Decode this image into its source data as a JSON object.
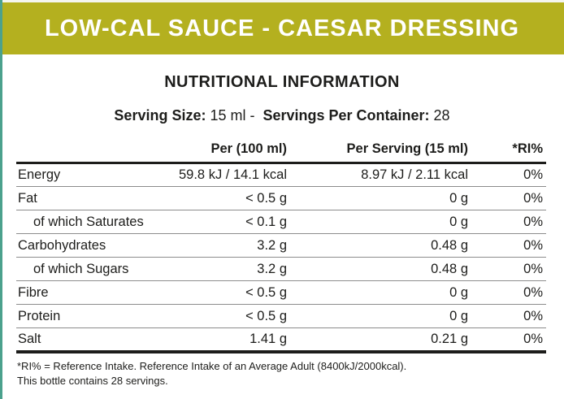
{
  "colors": {
    "banner_bg": "#b4b01f",
    "accent_stripe": "#4ba18d",
    "text": "#1d1d1b",
    "row_divider": "#8c8c8c"
  },
  "banner": {
    "title": "LOW-CAL SAUCE - CAESAR DRESSING"
  },
  "heading": {
    "title": "NUTRITIONAL INFORMATION"
  },
  "serving": {
    "size_label": "Serving Size:",
    "size_value": "15 ml",
    "dash": "-",
    "container_label": "Servings Per Container:",
    "container_value": "28"
  },
  "table": {
    "columns": [
      "",
      "Per (100 ml)",
      "Per Serving (15 ml)",
      "*RI%"
    ],
    "rows": [
      {
        "label": "Energy",
        "per100": "59.8 kJ / 14.1 kcal",
        "perServing": "8.97 kJ / 2.11 kcal",
        "ri": "0%"
      },
      {
        "label": "Fat",
        "per100": "< 0.5 g",
        "perServing": "0 g",
        "ri": "0%"
      },
      {
        "label": "of which Saturates",
        "per100": "< 0.1 g",
        "perServing": "0 g",
        "ri": "0%"
      },
      {
        "label": "Carbohydrates",
        "per100": "3.2 g",
        "perServing": "0.48 g",
        "ri": "0%"
      },
      {
        "label": "of which Sugars",
        "per100": "3.2 g",
        "perServing": "0.48 g",
        "ri": "0%"
      },
      {
        "label": "Fibre",
        "per100": "< 0.5 g",
        "perServing": "0 g",
        "ri": "0%"
      },
      {
        "label": "Protein",
        "per100": "< 0.5 g",
        "perServing": "0 g",
        "ri": "0%"
      },
      {
        "label": "Salt",
        "per100": "1.41 g",
        "perServing": "0.21 g",
        "ri": "0%"
      }
    ]
  },
  "footnote": {
    "line1": "*RI% = Reference Intake. Reference Intake of an Average Adult (8400kJ/2000kcal).",
    "line2": "This bottle contains 28 servings."
  }
}
